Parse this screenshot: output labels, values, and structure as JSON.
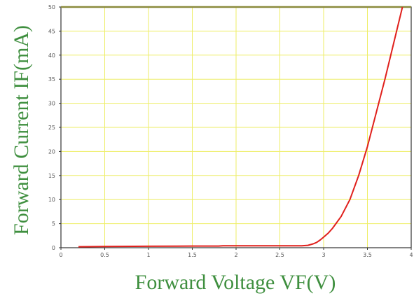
{
  "chart_data": {
    "type": "line",
    "title": "",
    "xlabel": "Forward Voltage VF(V)",
    "ylabel": "Forward Current IF(mA)",
    "xlim": [
      0,
      4
    ],
    "ylim": [
      0,
      50
    ],
    "x_ticks": [
      "0",
      "0.5",
      "1",
      "1.5",
      "2",
      "2.5",
      "3",
      "3.5",
      "4"
    ],
    "y_ticks": [
      "0",
      "5",
      "10",
      "15",
      "20",
      "25",
      "30",
      "35",
      "40",
      "45",
      "50"
    ],
    "grid": true,
    "legend": "none",
    "series": [
      {
        "color": "#e0201c",
        "x": [
          0.2,
          0.5,
          1.0,
          1.5,
          1.8,
          1.85,
          2.0,
          2.5,
          2.75,
          2.82,
          2.88,
          2.92,
          2.96,
          3.0,
          3.05,
          3.1,
          3.2,
          3.3,
          3.4,
          3.5,
          3.6,
          3.7,
          3.8,
          3.9
        ],
        "y": [
          0.2,
          0.25,
          0.3,
          0.35,
          0.35,
          0.4,
          0.4,
          0.4,
          0.4,
          0.5,
          0.8,
          1.1,
          1.6,
          2.2,
          3.0,
          4.0,
          6.5,
          10.0,
          15.0,
          21.0,
          28.0,
          35.0,
          42.5,
          50.0
        ]
      }
    ],
    "colors": {
      "grid": "#eeee66",
      "frame": "#333333",
      "top_band": "#8a8a3c",
      "axis_title": "#3f8f3f"
    }
  }
}
